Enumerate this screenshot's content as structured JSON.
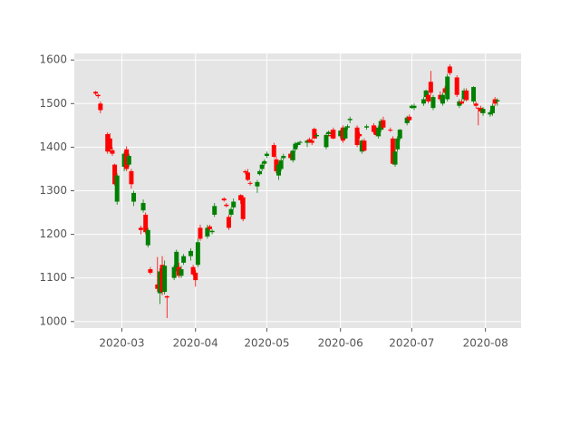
{
  "chart_data": {
    "type": "candlestick",
    "x": [
      50,
      51,
      52,
      55,
      56,
      57,
      58,
      59,
      62,
      63,
      64,
      65,
      66,
      69,
      70,
      71,
      72,
      73,
      76,
      77,
      78,
      79,
      80,
      83,
      84,
      85,
      86,
      87,
      90,
      91,
      92,
      93,
      94,
      97,
      98,
      99,
      100,
      104,
      105,
      106,
      107,
      108,
      111,
      112,
      113,
      114,
      115,
      118,
      119,
      120,
      121,
      122,
      125,
      126,
      127,
      128,
      129,
      132,
      133,
      134,
      135,
      136,
      139,
      140,
      141,
      142,
      143,
      147,
      148,
      149,
      150,
      153,
      154,
      155,
      156,
      157,
      160,
      161,
      162,
      163,
      164,
      167,
      168,
      169,
      170,
      171,
      174,
      175,
      176,
      177,
      178,
      181,
      182,
      183,
      184,
      188,
      189,
      190,
      191,
      192,
      195,
      196,
      197,
      198,
      199,
      202,
      203,
      204,
      205,
      206,
      209,
      210,
      211,
      212,
      213,
      216,
      217,
      218,
      219
    ],
    "open": [
      1527,
      1520,
      1500,
      1430,
      1420,
      1393,
      1360,
      1275,
      1355,
      1395,
      1360,
      1345,
      1275,
      1215,
      1255,
      1245,
      1175,
      1120,
      1085,
      1065,
      1130,
      1068,
      1058,
      1100,
      1120,
      1125,
      1105,
      1135,
      1150,
      1125,
      1112,
      1130,
      1215,
      1195,
      1218,
      1205,
      1245,
      1282,
      1268,
      1240,
      1245,
      1262,
      1290,
      1285,
      1345,
      1342,
      1318,
      1310,
      1338,
      1350,
      1362,
      1380,
      1405,
      1372,
      1335,
      1350,
      1375,
      1385,
      1370,
      1395,
      1405,
      1410,
      1410,
      1418,
      1415,
      1442,
      1425,
      1400,
      1430,
      1428,
      1440,
      1425,
      1445,
      1420,
      1445,
      1462,
      1445,
      1430,
      1390,
      1415,
      1445,
      1450,
      1440,
      1425,
      1440,
      1462,
      1440,
      1420,
      1360,
      1395,
      1420,
      1455,
      1470,
      1490,
      1490,
      1500,
      1515,
      1520,
      1550,
      1490,
      1520,
      1500,
      1535,
      1510,
      1585,
      1560,
      1495,
      1505,
      1510,
      1530,
      1505,
      1500,
      1490,
      1490,
      1478,
      1475,
      1478,
      1510,
      1505
    ],
    "high": [
      1529,
      1522,
      1505,
      1434,
      1432,
      1400,
      1362,
      1340,
      1390,
      1402,
      1385,
      1350,
      1300,
      1220,
      1280,
      1250,
      1215,
      1125,
      1148,
      1122,
      1150,
      1140,
      1060,
      1130,
      1165,
      1135,
      1128,
      1155,
      1168,
      1130,
      1118,
      1190,
      1222,
      1222,
      1222,
      1212,
      1272,
      1285,
      1272,
      1245,
      1262,
      1282,
      1292,
      1290,
      1348,
      1350,
      1322,
      1325,
      1348,
      1365,
      1372,
      1390,
      1410,
      1378,
      1365,
      1375,
      1385,
      1390,
      1395,
      1412,
      1412,
      1415,
      1418,
      1422,
      1420,
      1445,
      1432,
      1432,
      1438,
      1440,
      1445,
      1440,
      1450,
      1448,
      1452,
      1470,
      1450,
      1435,
      1418,
      1420,
      1452,
      1455,
      1448,
      1450,
      1465,
      1470,
      1445,
      1425,
      1395,
      1425,
      1442,
      1472,
      1475,
      1498,
      1500,
      1515,
      1532,
      1525,
      1575,
      1520,
      1528,
      1525,
      1540,
      1568,
      1590,
      1565,
      1510,
      1510,
      1535,
      1535,
      1540,
      1505,
      1492,
      1495,
      1492,
      1485,
      1500,
      1515,
      1512
    ],
    "low": [
      1519,
      1512,
      1478,
      1385,
      1388,
      1380,
      1312,
      1268,
      1345,
      1345,
      1355,
      1305,
      1265,
      1200,
      1250,
      1200,
      1170,
      1108,
      1068,
      1040,
      1060,
      1062,
      1008,
      1095,
      1115,
      1100,
      1100,
      1130,
      1140,
      1105,
      1080,
      1125,
      1185,
      1190,
      1208,
      1200,
      1240,
      1275,
      1262,
      1210,
      1240,
      1258,
      1270,
      1230,
      1338,
      1322,
      1312,
      1295,
      1335,
      1345,
      1358,
      1375,
      1375,
      1340,
      1325,
      1345,
      1370,
      1370,
      1365,
      1390,
      1400,
      1405,
      1400,
      1410,
      1405,
      1418,
      1420,
      1395,
      1425,
      1420,
      1418,
      1420,
      1410,
      1418,
      1440,
      1455,
      1400,
      1420,
      1385,
      1390,
      1440,
      1430,
      1425,
      1420,
      1435,
      1440,
      1435,
      1360,
      1355,
      1390,
      1415,
      1450,
      1458,
      1488,
      1485,
      1495,
      1510,
      1500,
      1520,
      1485,
      1505,
      1495,
      1522,
      1505,
      1565,
      1515,
      1490,
      1498,
      1505,
      1505,
      1500,
      1490,
      1450,
      1478,
      1472,
      1470,
      1472,
      1495,
      1495
    ],
    "close": [
      1523,
      1517,
      1485,
      1390,
      1395,
      1385,
      1315,
      1335,
      1385,
      1350,
      1380,
      1315,
      1295,
      1210,
      1272,
      1205,
      1210,
      1112,
      1075,
      1115,
      1068,
      1128,
      1055,
      1125,
      1160,
      1105,
      1120,
      1150,
      1162,
      1108,
      1095,
      1182,
      1190,
      1215,
      1212,
      1208,
      1265,
      1278,
      1265,
      1215,
      1258,
      1275,
      1278,
      1235,
      1342,
      1325,
      1316,
      1320,
      1345,
      1360,
      1368,
      1385,
      1378,
      1345,
      1360,
      1370,
      1380,
      1375,
      1392,
      1408,
      1410,
      1412,
      1415,
      1412,
      1410,
      1420,
      1428,
      1428,
      1435,
      1425,
      1420,
      1438,
      1415,
      1445,
      1448,
      1465,
      1405,
      1425,
      1415,
      1392,
      1448,
      1435,
      1428,
      1445,
      1460,
      1445,
      1438,
      1362,
      1390,
      1420,
      1440,
      1468,
      1462,
      1495,
      1495,
      1510,
      1530,
      1505,
      1525,
      1515,
      1510,
      1520,
      1525,
      1562,
      1570,
      1520,
      1505,
      1500,
      1530,
      1508,
      1538,
      1495,
      1488,
      1482,
      1488,
      1480,
      1495,
      1500,
      1508
    ],
    "up_color": "#008000",
    "down_color": "#ff0000",
    "xlim": [
      41,
      229
    ],
    "xticks": [
      {
        "value": 61,
        "label": "2020-03"
      },
      {
        "value": 92,
        "label": "2020-04"
      },
      {
        "value": 122,
        "label": "2020-05"
      },
      {
        "value": 153,
        "label": "2020-06"
      },
      {
        "value": 183,
        "label": "2020-07"
      },
      {
        "value": 214,
        "label": "2020-08"
      }
    ],
    "ylim": [
      985,
      1615
    ],
    "yticks": [
      1000,
      1100,
      1200,
      1300,
      1400,
      1500,
      1600
    ],
    "grid": true
  }
}
